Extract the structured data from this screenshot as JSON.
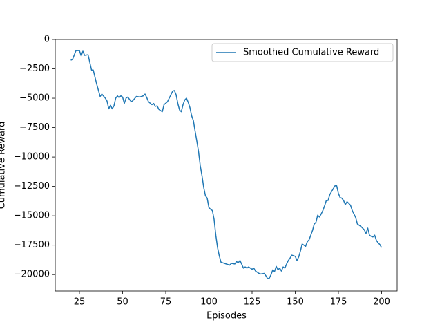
{
  "chart_data": {
    "type": "line",
    "xlabel": "Episodes",
    "ylabel": "Cumulative Reward",
    "legend": "upper right",
    "grid": false,
    "xlim": [
      11,
      209
    ],
    "ylim": [
      -21400,
      0
    ],
    "xticks": [
      25,
      50,
      75,
      100,
      125,
      150,
      175,
      200
    ],
    "yticks": [
      0,
      {
        "value": -2500,
        "label": "−2500"
      },
      {
        "value": -5000,
        "label": "−5000"
      },
      {
        "value": -7500,
        "label": "−7500"
      },
      {
        "value": -10000,
        "label": "−10000"
      },
      {
        "value": -12500,
        "label": "−12500"
      },
      {
        "value": -15000,
        "label": "−15000"
      },
      {
        "value": -17500,
        "label": "−17500"
      },
      {
        "value": -20000,
        "label": "−20000"
      }
    ],
    "x": [
      20,
      21,
      23,
      25,
      26,
      27,
      28,
      30,
      32,
      33,
      35,
      37,
      38,
      40,
      41,
      42,
      43,
      44,
      45,
      46,
      47,
      48,
      49,
      50,
      51,
      52,
      53,
      55,
      56,
      58,
      60,
      62,
      63,
      64,
      65,
      67,
      68,
      69,
      70,
      71,
      73,
      74,
      76,
      78,
      79,
      80,
      81,
      82,
      83,
      84,
      85,
      86,
      87,
      88,
      89,
      90,
      91,
      92,
      93,
      94,
      95,
      96,
      97,
      98,
      99,
      100,
      101,
      102,
      103,
      104,
      105,
      106,
      107,
      108,
      110,
      112,
      113,
      115,
      116,
      117,
      118,
      120,
      121,
      122,
      123,
      125,
      126,
      127,
      129,
      130,
      132,
      133,
      134,
      135,
      136,
      137,
      138,
      139,
      140,
      141,
      142,
      143,
      144,
      145,
      146,
      147,
      148,
      150,
      151,
      152,
      153,
      154,
      155,
      156,
      157,
      158,
      159,
      160,
      161,
      162,
      163,
      164,
      165,
      166,
      167,
      168,
      169,
      170,
      171,
      172,
      173,
      174,
      175,
      176,
      177,
      178,
      179,
      180,
      181,
      182,
      183,
      184,
      185,
      186,
      187,
      188,
      189,
      190,
      191,
      192,
      193,
      194,
      195,
      196,
      197,
      198,
      199,
      200
    ],
    "series": [
      {
        "name": "Smoothed Cumulative Reward",
        "color": "#1f77b4",
        "values": [
          -1770,
          -1700,
          -950,
          -950,
          -1400,
          -1000,
          -1350,
          -1300,
          -2600,
          -2600,
          -3800,
          -4850,
          -4650,
          -5000,
          -5250,
          -5900,
          -5600,
          -5900,
          -5650,
          -5000,
          -4800,
          -4950,
          -4800,
          -4900,
          -5450,
          -5000,
          -4900,
          -5300,
          -5200,
          -4850,
          -4900,
          -4800,
          -4650,
          -4950,
          -5300,
          -5550,
          -5450,
          -5700,
          -5650,
          -5950,
          -6150,
          -5550,
          -5300,
          -4700,
          -4400,
          -4350,
          -4700,
          -5450,
          -6000,
          -6150,
          -5550,
          -5150,
          -5000,
          -5350,
          -5800,
          -6500,
          -6900,
          -7800,
          -8650,
          -9550,
          -10750,
          -11600,
          -12600,
          -13300,
          -13500,
          -14300,
          -14450,
          -14550,
          -15300,
          -16650,
          -17700,
          -18400,
          -18950,
          -19000,
          -19100,
          -19200,
          -19050,
          -19100,
          -18900,
          -19000,
          -18800,
          -19450,
          -19350,
          -19450,
          -19350,
          -19550,
          -19450,
          -19700,
          -19900,
          -19950,
          -19900,
          -20100,
          -20350,
          -20300,
          -20000,
          -19600,
          -19750,
          -19300,
          -19600,
          -19450,
          -19700,
          -19350,
          -19450,
          -19100,
          -18800,
          -18600,
          -18350,
          -18450,
          -18800,
          -18500,
          -18000,
          -17400,
          -17500,
          -17600,
          -17200,
          -17050,
          -16650,
          -16250,
          -15700,
          -15550,
          -14950,
          -15100,
          -14850,
          -14550,
          -14150,
          -13700,
          -13700,
          -13200,
          -12950,
          -12700,
          -12450,
          -12450,
          -13100,
          -13450,
          -13500,
          -13700,
          -14050,
          -13800,
          -13950,
          -14100,
          -14550,
          -14850,
          -15150,
          -15700,
          -15800,
          -15900,
          -16050,
          -16200,
          -16500,
          -16050,
          -16650,
          -16750,
          -16800,
          -16650,
          -17100,
          -17300,
          -17450,
          -17700
        ]
      }
    ]
  }
}
